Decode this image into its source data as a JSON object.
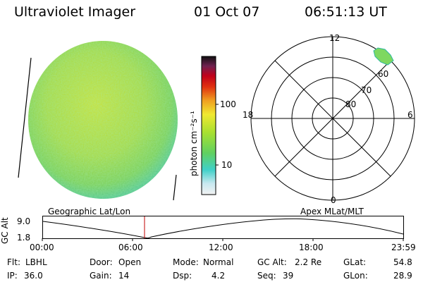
{
  "header": {
    "instrument": "Ultraviolet Imager",
    "date": "01 Oct 07",
    "time": "06:51:13 UT"
  },
  "colorbar": {
    "unit_label": "photon cm⁻²s⁻¹",
    "ticks": [
      "100",
      "10"
    ],
    "scale": "log",
    "colors": [
      "#dcdcdc",
      "#7fe0d8",
      "#3fd0c0",
      "#6ad46a",
      "#a8e23a",
      "#e8e830",
      "#f0a020",
      "#e04010",
      "#c0001a",
      "#80103a",
      "#400040",
      "#101010"
    ]
  },
  "polar_plot": {
    "mlt_labels": {
      "top": "12",
      "left": "18",
      "right": "6",
      "bottom": "0"
    },
    "lat_labels": [
      "60",
      "70",
      "80"
    ]
  },
  "timeline": {
    "axis_label": "GC Alt",
    "left_label": "Geographic Lat/Lon",
    "right_label": "Apex MLat/MLT",
    "y_ticks": [
      "9.0",
      "1.8"
    ],
    "x_ticks": [
      "00:00",
      "06:00",
      "12:00",
      "18:00",
      "23:59"
    ]
  },
  "status": {
    "flt_label": "Flt:",
    "flt_value": "LBHL",
    "ip_label": "IP:",
    "ip_value": "36.0",
    "door_label": "Door:",
    "door_value": "Open",
    "gain_label": "Gain:",
    "gain_value": "14",
    "mode_label": "Mode:",
    "mode_value": "Normal",
    "dsp_label": "Dsp:",
    "dsp_value": "4.2",
    "gcalt_label": "GC Alt:",
    "gcalt_value": "2.2 Re",
    "seq_label": "Seq:",
    "seq_value": "39",
    "glat_label": "GLat:",
    "glat_value": "54.8",
    "glon_label": "GLon:",
    "glon_value": "28.9"
  }
}
